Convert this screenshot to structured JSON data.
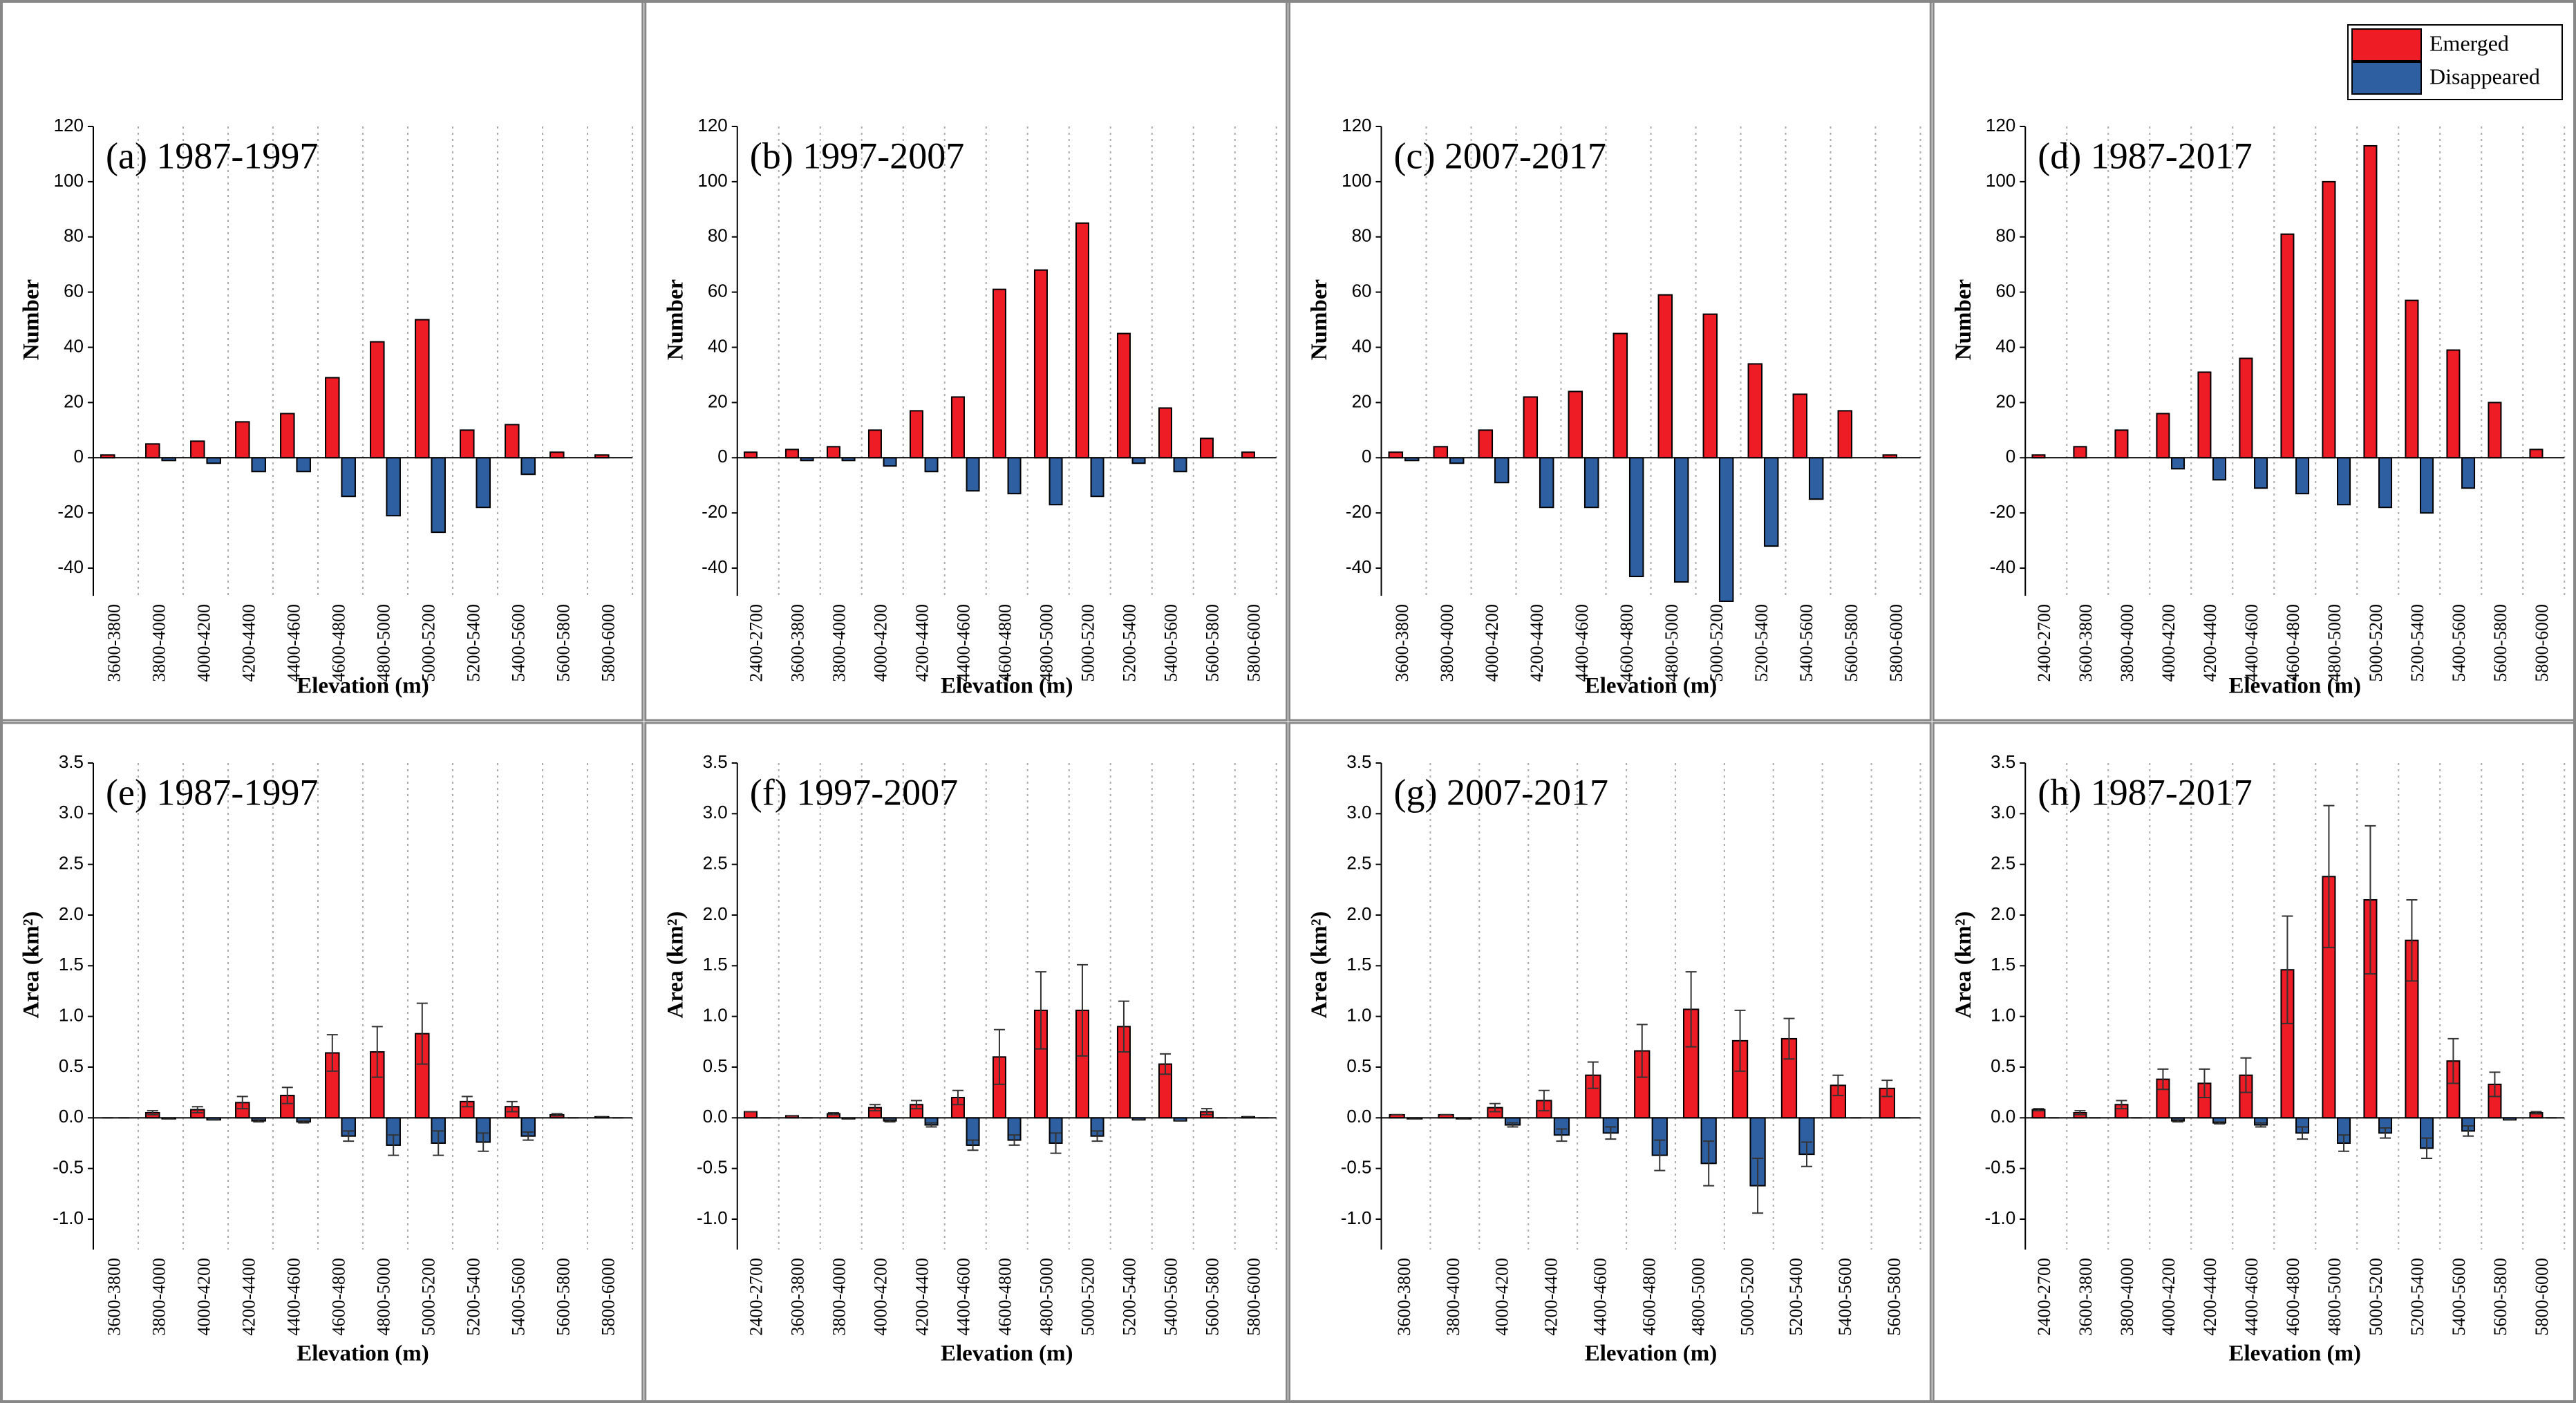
{
  "chart_data": [
    {
      "type": "bar",
      "title": "(a) 1987-1997",
      "y_label": "Number",
      "x_label": "Elevation (m)",
      "categories": [
        "3600-3800",
        "3800-4000",
        "4000-4200",
        "4200-4400",
        "4400-4600",
        "4600-4800",
        "4800-5000",
        "5000-5200",
        "5200-5400",
        "5400-5600",
        "5600-5800",
        "5800-6000"
      ],
      "series": [
        {
          "name": "Emerged",
          "color": "#ee1c25",
          "values": [
            1,
            5,
            6,
            13,
            16,
            29,
            42,
            50,
            10,
            12,
            2,
            1
          ]
        },
        {
          "name": "Disappeared",
          "color": "#2e5fa1",
          "values": [
            0,
            -1,
            -2,
            -5,
            -5,
            -14,
            -21,
            -27,
            -18,
            -6,
            0,
            0
          ]
        }
      ],
      "ylim": [
        -50,
        120
      ],
      "yticks": [
        -40,
        -20,
        0,
        20,
        40,
        60,
        80,
        100,
        120
      ]
    },
    {
      "type": "bar",
      "title": "(b) 1997-2007",
      "y_label": "Number",
      "x_label": "Elevation (m)",
      "categories": [
        "2400-2700",
        "3600-3800",
        "3800-4000",
        "4000-4200",
        "4200-4400",
        "4400-4600",
        "4600-4800",
        "4800-5000",
        "5000-5200",
        "5200-5400",
        "5400-5600",
        "5600-5800",
        "5800-6000"
      ],
      "series": [
        {
          "name": "Emerged",
          "color": "#ee1c25",
          "values": [
            2,
            3,
            4,
            10,
            17,
            22,
            61,
            68,
            85,
            45,
            18,
            7,
            2
          ]
        },
        {
          "name": "Disappeared",
          "color": "#2e5fa1",
          "values": [
            0,
            -1,
            -1,
            -3,
            -5,
            -12,
            -13,
            -17,
            -14,
            -2,
            -5,
            0,
            0
          ]
        }
      ],
      "ylim": [
        -50,
        120
      ],
      "yticks": [
        -40,
        -20,
        0,
        20,
        40,
        60,
        80,
        100,
        120
      ]
    },
    {
      "type": "bar",
      "title": "(c) 2007-2017",
      "y_label": "Number",
      "x_label": "Elevation (m)",
      "categories": [
        "3600-3800",
        "3800-4000",
        "4000-4200",
        "4200-4400",
        "4400-4600",
        "4600-4800",
        "4800-5000",
        "5000-5200",
        "5200-5400",
        "5400-5600",
        "5600-5800",
        "5800-6000"
      ],
      "series": [
        {
          "name": "Emerged",
          "color": "#ee1c25",
          "values": [
            2,
            4,
            10,
            22,
            24,
            45,
            59,
            52,
            34,
            23,
            17,
            1
          ]
        },
        {
          "name": "Disappeared",
          "color": "#2e5fa1",
          "values": [
            -1,
            -2,
            -9,
            -18,
            -18,
            -43,
            -45,
            -52,
            -32,
            -15,
            0,
            0
          ]
        }
      ],
      "ylim": [
        -50,
        120
      ],
      "yticks": [
        -40,
        -20,
        0,
        20,
        40,
        60,
        80,
        100,
        120
      ]
    },
    {
      "type": "bar",
      "title": "(d) 1987-2017",
      "y_label": "Number",
      "x_label": "Elevation (m)",
      "legend": "upper right",
      "categories": [
        "2400-2700",
        "3600-3800",
        "3800-4000",
        "4000-4200",
        "4200-4400",
        "4400-4600",
        "4600-4800",
        "4800-5000",
        "5000-5200",
        "5200-5400",
        "5400-5600",
        "5600-5800",
        "5800-6000"
      ],
      "series": [
        {
          "name": "Emerged",
          "color": "#ee1c25",
          "values": [
            1,
            4,
            10,
            16,
            31,
            36,
            81,
            100,
            113,
            57,
            39,
            20,
            3
          ]
        },
        {
          "name": "Disappeared",
          "color": "#2e5fa1",
          "values": [
            0,
            0,
            0,
            -4,
            -8,
            -11,
            -13,
            -17,
            -18,
            -20,
            -11,
            0,
            0
          ]
        }
      ],
      "ylim": [
        -50,
        120
      ],
      "yticks": [
        -40,
        -20,
        0,
        20,
        40,
        60,
        80,
        100,
        120
      ]
    },
    {
      "type": "bar",
      "title": "(e) 1987-1997",
      "y_label": "Area (km²)",
      "x_label": "Elevation (m)",
      "categories": [
        "3600-3800",
        "3800-4000",
        "4000-4200",
        "4200-4400",
        "4400-4600",
        "4600-4800",
        "4800-5000",
        "5000-5200",
        "5200-5400",
        "5400-5600",
        "5600-5800",
        "5800-6000"
      ],
      "series": [
        {
          "name": "Emerged",
          "color": "#ee1c25",
          "values": [
            0,
            0.05,
            0.08,
            0.15,
            0.22,
            0.64,
            0.65,
            0.83,
            0.16,
            0.11,
            0.03,
            0.01
          ],
          "errors": [
            0,
            0.02,
            0.03,
            0.06,
            0.08,
            0.18,
            0.25,
            0.3,
            0.05,
            0.05,
            0.01,
            0
          ]
        },
        {
          "name": "Disappeared",
          "color": "#2e5fa1",
          "values": [
            0,
            -0.01,
            -0.02,
            -0.03,
            -0.04,
            -0.18,
            -0.27,
            -0.25,
            -0.24,
            -0.18,
            0,
            0
          ],
          "errors": [
            0,
            0,
            0,
            0.01,
            0.01,
            0.05,
            0.1,
            0.12,
            0.09,
            0.04,
            0,
            0
          ]
        }
      ],
      "ylim": [
        -1.3,
        3.5
      ],
      "yticks": [
        {
          "value": -1,
          "label": "-1.0"
        },
        -0.5,
        {
          "value": 0,
          "label": "0.0"
        },
        0.5,
        {
          "value": 1,
          "label": "1.0"
        },
        1.5,
        {
          "value": 2,
          "label": "2.0"
        },
        2.5,
        {
          "value": 3,
          "label": "3.0"
        },
        3.5
      ]
    },
    {
      "type": "bar",
      "title": "(f) 1997-2007",
      "y_label": "Area (km²)",
      "x_label": "Elevation (m)",
      "categories": [
        "2400-2700",
        "3600-3800",
        "3800-4000",
        "4000-4200",
        "4200-4400",
        "4400-4600",
        "4600-4800",
        "4800-5000",
        "5000-5200",
        "5200-5400",
        "5400-5600",
        "5600-5800",
        "5800-6000"
      ],
      "series": [
        {
          "name": "Emerged",
          "color": "#ee1c25",
          "values": [
            0.06,
            0.02,
            0.04,
            0.1,
            0.13,
            0.2,
            0.6,
            1.06,
            1.06,
            0.9,
            0.53,
            0.06,
            0.01
          ],
          "errors": [
            0,
            0,
            0.01,
            0.03,
            0.04,
            0.07,
            0.27,
            0.38,
            0.45,
            0.25,
            0.1,
            0.03,
            0
          ]
        },
        {
          "name": "Disappeared",
          "color": "#2e5fa1",
          "values": [
            0,
            0,
            -0.01,
            -0.03,
            -0.07,
            -0.27,
            -0.22,
            -0.25,
            -0.18,
            -0.02,
            -0.03,
            0,
            0
          ],
          "errors": [
            0,
            0,
            0,
            0.01,
            0.02,
            0.05,
            0.05,
            0.1,
            0.05,
            0,
            0,
            0,
            0
          ]
        }
      ],
      "ylim": [
        -1.3,
        3.5
      ],
      "yticks": [
        {
          "value": -1,
          "label": "-1.0"
        },
        -0.5,
        {
          "value": 0,
          "label": "0.0"
        },
        0.5,
        {
          "value": 1,
          "label": "1.0"
        },
        1.5,
        {
          "value": 2,
          "label": "2.0"
        },
        2.5,
        {
          "value": 3,
          "label": "3.0"
        },
        3.5
      ]
    },
    {
      "type": "bar",
      "title": "(g) 2007-2017",
      "y_label": "Area (km²)",
      "x_label": "Elevation (m)",
      "categories": [
        "3600-3800",
        "3800-4000",
        "4000-4200",
        "4200-4400",
        "4400-4600",
        "4600-4800",
        "4800-5000",
        "5000-5200",
        "5200-5400",
        "5400-5600",
        "5600-5800"
      ],
      "series": [
        {
          "name": "Emerged",
          "color": "#ee1c25",
          "values": [
            0.03,
            0.03,
            0.1,
            0.17,
            0.42,
            0.66,
            1.07,
            0.76,
            0.78,
            0.32,
            0.29
          ],
          "errors": [
            0,
            0,
            0.04,
            0.1,
            0.13,
            0.26,
            0.37,
            0.3,
            0.2,
            0.1,
            0.08
          ]
        },
        {
          "name": "Disappeared",
          "color": "#2e5fa1",
          "values": [
            -0.01,
            -0.01,
            -0.07,
            -0.17,
            -0.15,
            -0.37,
            -0.45,
            -0.67,
            -0.36,
            0,
            0
          ],
          "errors": [
            0,
            0,
            0.02,
            0.06,
            0.06,
            0.15,
            0.22,
            0.27,
            0.12,
            0,
            0
          ]
        }
      ],
      "ylim": [
        -1.3,
        3.5
      ],
      "yticks": [
        {
          "value": -1,
          "label": "-1.0"
        },
        -0.5,
        {
          "value": 0,
          "label": "0.0"
        },
        0.5,
        {
          "value": 1,
          "label": "1.0"
        },
        1.5,
        {
          "value": 2,
          "label": "2.0"
        },
        2.5,
        {
          "value": 3,
          "label": "3.0"
        },
        3.5
      ]
    },
    {
      "type": "bar",
      "title": "(h) 1987-2017",
      "y_label": "Area (km²)",
      "x_label": "Elevation (m)",
      "categories": [
        "2400-2700",
        "3600-3800",
        "3800-4000",
        "4000-4200",
        "4200-4400",
        "4400-4600",
        "4600-4800",
        "4800-5000",
        "5000-5200",
        "5200-5400",
        "5400-5600",
        "5600-5800",
        "5800-6000"
      ],
      "series": [
        {
          "name": "Emerged",
          "color": "#ee1c25",
          "values": [
            0.08,
            0.05,
            0.13,
            0.38,
            0.34,
            0.42,
            1.46,
            2.38,
            2.15,
            1.75,
            0.56,
            0.33,
            0.05
          ],
          "errors": [
            0.01,
            0.02,
            0.04,
            0.1,
            0.14,
            0.17,
            0.53,
            0.7,
            0.73,
            0.4,
            0.22,
            0.12,
            0.01
          ]
        },
        {
          "name": "Disappeared",
          "color": "#2e5fa1",
          "values": [
            0,
            0,
            0,
            -0.03,
            -0.05,
            -0.07,
            -0.15,
            -0.25,
            -0.15,
            -0.3,
            -0.13,
            -0.02,
            0
          ],
          "errors": [
            0,
            0,
            0,
            0.01,
            0.01,
            0.02,
            0.06,
            0.08,
            0.05,
            0.1,
            0.05,
            0,
            0
          ]
        }
      ],
      "ylim": [
        -1.3,
        3.5
      ],
      "yticks": [
        {
          "value": -1,
          "label": "-1.0"
        },
        -0.5,
        {
          "value": 0,
          "label": "0.0"
        },
        0.5,
        {
          "value": 1,
          "label": "1.0"
        },
        1.5,
        {
          "value": 2,
          "label": "2.0"
        },
        2.5,
        {
          "value": 3,
          "label": "3.0"
        },
        3.5
      ]
    }
  ]
}
